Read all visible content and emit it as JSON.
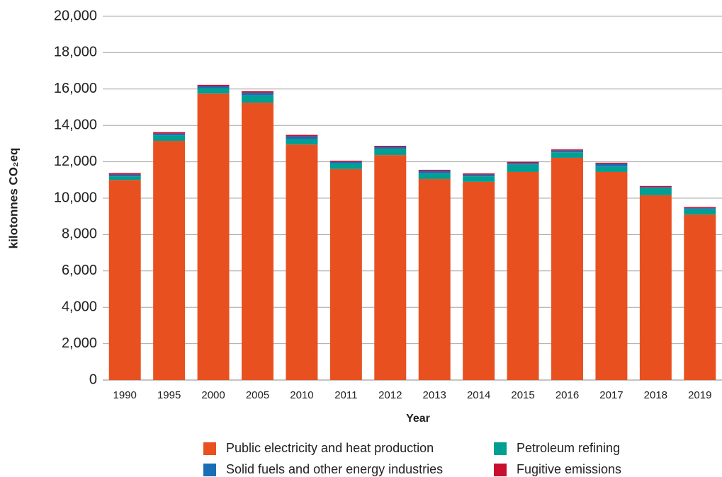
{
  "chart_data": {
    "type": "stacked_bar",
    "xlabel": "Year",
    "ylabel": "kilotonnes CO₂eq",
    "categories": [
      "1990",
      "1995",
      "2000",
      "2005",
      "2010",
      "2011",
      "2012",
      "2013",
      "2014",
      "2015",
      "2016",
      "2017",
      "2018",
      "2019"
    ],
    "series": [
      {
        "name": "Public electricity and heat production",
        "color": "#e8501f",
        "values": [
          11000,
          13150,
          15750,
          15250,
          12950,
          11600,
          12370,
          11050,
          10900,
          11440,
          12220,
          11440,
          10160,
          9100
        ]
      },
      {
        "name": "Petroleum refining",
        "color": "#009f93",
        "values": [
          200,
          300,
          300,
          400,
          300,
          300,
          350,
          300,
          300,
          400,
          300,
          300,
          400,
          300
        ]
      },
      {
        "name": "Solid fuels and other energy industries",
        "color": "#1a6eb5",
        "values": [
          100,
          100,
          100,
          150,
          150,
          100,
          100,
          150,
          100,
          100,
          100,
          150,
          50,
          50
        ]
      },
      {
        "name": "Fugitive emissions",
        "color": "#c8102e",
        "values": [
          80,
          80,
          80,
          80,
          80,
          60,
          60,
          60,
          60,
          60,
          60,
          60,
          60,
          60
        ]
      }
    ],
    "ylim": [
      0,
      20000
    ],
    "yticks": [
      0,
      {
        "value": 2000,
        "label": "2,000"
      },
      {
        "value": 4000,
        "label": "4,000"
      },
      {
        "value": 6000,
        "label": "6,000"
      },
      {
        "value": 8000,
        "label": "8,000"
      },
      {
        "value": 10000,
        "label": "10,000"
      },
      {
        "value": 12000,
        "label": "12,000"
      },
      {
        "value": 14000,
        "label": "14,000"
      },
      {
        "value": 16000,
        "label": "16,000"
      },
      {
        "value": 18000,
        "label": "18,000"
      },
      {
        "value": 20000,
        "label": "20,000"
      }
    ],
    "grid": true
  }
}
